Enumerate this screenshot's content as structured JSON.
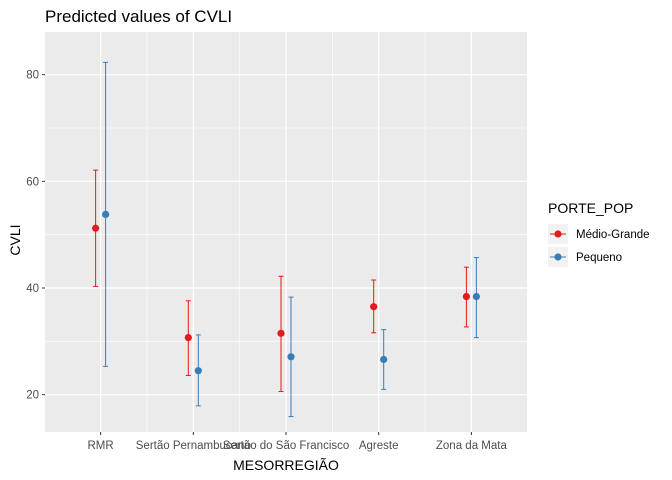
{
  "chart_data": {
    "type": "scatter",
    "title": "Predicted values of CVLI",
    "xlabel": "MESORREGIÃO",
    "ylabel": "CVLI",
    "categories": [
      "RMR",
      "Sertão Pernambucano",
      "Sertão do São Francisco",
      "Agreste",
      "Zona da Mata"
    ],
    "ylim": [
      13,
      88
    ],
    "yticks": [
      20,
      40,
      60,
      80
    ],
    "grid": true,
    "legend": {
      "title": "PORTE_POP",
      "position": "right"
    },
    "series": [
      {
        "name": "Médio-Grande",
        "color": "#e41a1c",
        "values": [
          51.2,
          30.7,
          31.5,
          36.5,
          38.4
        ],
        "lower": [
          40.3,
          23.6,
          20.6,
          31.6,
          32.7
        ],
        "upper": [
          62.1,
          37.6,
          42.2,
          41.5,
          43.9
        ]
      },
      {
        "name": "Pequeno",
        "color": "#377eb8",
        "values": [
          53.8,
          24.5,
          27.1,
          26.6,
          38.4
        ],
        "lower": [
          25.3,
          17.9,
          15.9,
          21.0,
          30.7
        ],
        "upper": [
          82.3,
          31.2,
          38.3,
          32.2,
          45.7
        ]
      }
    ]
  }
}
